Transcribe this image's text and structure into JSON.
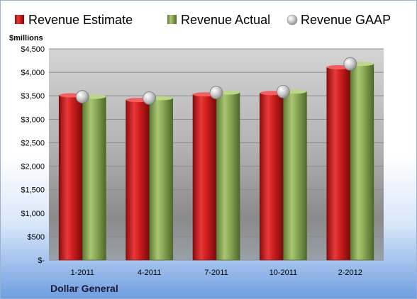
{
  "chart_data": {
    "type": "bar",
    "units_label": "$millions",
    "company": "Dollar General",
    "categories": [
      "1-2011",
      "4-2011",
      "7-2011",
      "10-2011",
      "2-2012"
    ],
    "series": [
      {
        "name": "Revenue Estimate",
        "type": "bar",
        "color": "#d42020",
        "values": [
          3510,
          3410,
          3530,
          3560,
          4110
        ]
      },
      {
        "name": "Revenue Actual",
        "type": "bar",
        "color": "#8fae5a",
        "values": [
          3480,
          3450,
          3570,
          3590,
          4180
        ]
      },
      {
        "name": "Revenue GAAP",
        "type": "marker",
        "color": "#b8b8b8",
        "values": [
          3480,
          3450,
          3570,
          3590,
          4180
        ]
      }
    ],
    "ylim": [
      0,
      4500
    ],
    "y_ticks": [
      {
        "value": 0,
        "label": "$-"
      },
      {
        "value": 500,
        "label": "$500"
      },
      {
        "value": 1000,
        "label": "$1,000"
      },
      {
        "value": 1500,
        "label": "$1,500"
      },
      {
        "value": 2000,
        "label": "$2,000"
      },
      {
        "value": 2500,
        "label": "$2,500"
      },
      {
        "value": 3000,
        "label": "$3,000"
      },
      {
        "value": 3500,
        "label": "$3,500"
      },
      {
        "value": 4000,
        "label": "$4,000"
      },
      {
        "value": 4500,
        "label": "$4,500"
      }
    ],
    "grid": true,
    "legend_position": "top"
  }
}
